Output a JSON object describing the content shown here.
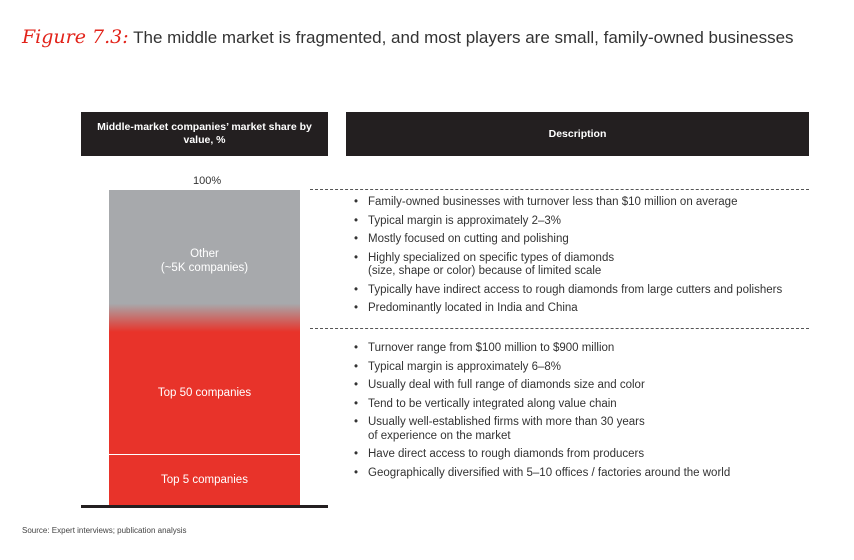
{
  "figure_label": "Figure 7.3:",
  "title": "The middle market is fragmented, and most players are small, family-owned businesses",
  "headers": {
    "left": "Middle-market companies’ market share by value, %",
    "right": "Description"
  },
  "chart_data": {
    "type": "bar",
    "title": "The middle market is fragmented, and most players are small, family-owned businesses",
    "ylabel": "Middle-market companies’ market share by value, %",
    "top_label": "100%",
    "ylim": [
      0,
      100
    ],
    "stacked": true,
    "categories": [
      "Middle-market companies"
    ],
    "series": [
      {
        "name": "Top 5 companies",
        "values": [
          16
        ],
        "color": "#e8332a"
      },
      {
        "name": "Top 50 companies",
        "values": [
          39
        ],
        "color": "#e8332a"
      },
      {
        "name": "Other (~5K companies)",
        "values": [
          45
        ],
        "color": "#a7a9ac"
      }
    ]
  },
  "descriptions": [
    {
      "segment": "Other (~5K companies)",
      "bullets": [
        "Family-owned businesses with turnover less than $10 million on average",
        "Typical margin is approximately 2–3%",
        "Mostly focused on cutting and polishing",
        "Highly specialized on specific types of diamonds\n(size, shape or color) because of limited scale",
        "Typically have indirect access to rough diamonds from large cutters and polishers",
        "Predominantly located in India and China"
      ]
    },
    {
      "segment": "Top 50 companies",
      "bullets": [
        "Turnover range from $100 million to $900 million",
        "Typical margin is approximately 6–8%",
        "Usually deal with full range of diamonds size and color",
        "Tend to be vertically integrated along value chain",
        "Usually well-established firms with more than 30 years\nof experience on the market",
        "Have direct access to rough diamonds from producers",
        "Geographically diversified with 5–10 offices / factories around the world"
      ]
    }
  ],
  "source": "Source: Expert interviews; publication analysis"
}
